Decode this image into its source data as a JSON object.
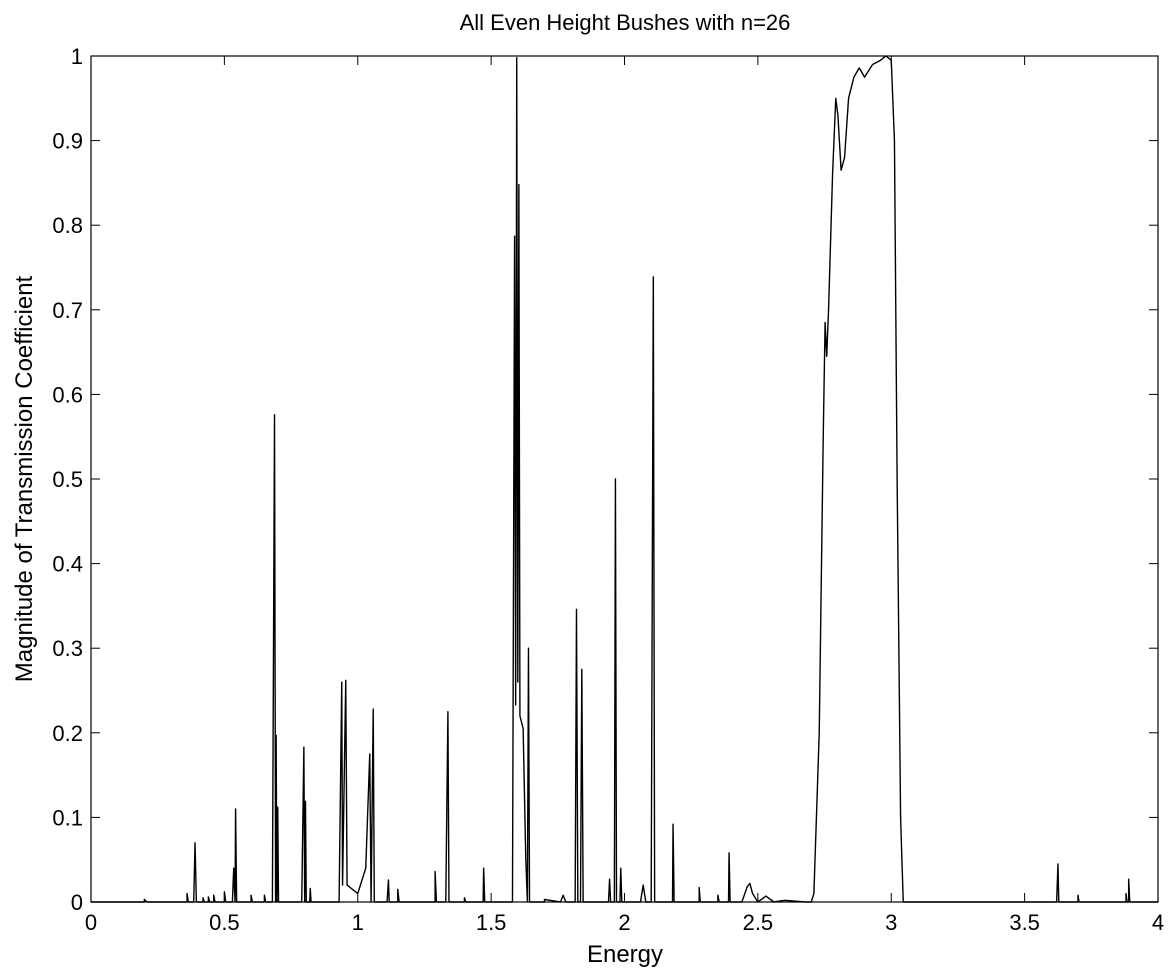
{
  "chart_data": {
    "type": "line",
    "title": "All Even Height Bushes with n=26",
    "xlabel": "Energy",
    "ylabel": "Magnitude of Transmission Coefficient",
    "xlim": [
      0,
      4
    ],
    "ylim": [
      0,
      1
    ],
    "grid": false,
    "x_ticks": [
      0,
      0.5,
      1,
      1.5,
      2,
      2.5,
      3,
      3.5,
      4
    ],
    "x_tick_labels": [
      "0",
      "0.5",
      "1",
      "1.5",
      "2",
      "2.5",
      "3",
      "3.5",
      "4"
    ],
    "y_ticks": [
      0,
      0.1,
      0.2,
      0.3,
      0.4,
      0.5,
      0.6,
      0.7,
      0.8,
      0.9,
      1
    ],
    "y_tick_labels": [
      "0",
      "0.1",
      "0.2",
      "0.3",
      "0.4",
      "0.5",
      "0.6",
      "0.7",
      "0.8",
      "0.9",
      "1"
    ],
    "series": [
      {
        "color": "#000000",
        "points": [
          [
            0.0,
            0.0
          ],
          [
            0.2,
            0.0
          ],
          [
            0.2,
            0.003
          ],
          [
            0.21,
            0.0
          ],
          [
            0.36,
            0.0
          ],
          [
            0.36,
            0.01
          ],
          [
            0.365,
            0.0
          ],
          [
            0.385,
            0.0
          ],
          [
            0.39,
            0.07
          ],
          [
            0.395,
            0.0
          ],
          [
            0.42,
            0.0
          ],
          [
            0.42,
            0.005
          ],
          [
            0.425,
            0.0
          ],
          [
            0.44,
            0.0
          ],
          [
            0.44,
            0.006
          ],
          [
            0.445,
            0.0
          ],
          [
            0.46,
            0.0
          ],
          [
            0.46,
            0.008
          ],
          [
            0.465,
            0.0
          ],
          [
            0.5,
            0.0
          ],
          [
            0.5,
            0.012
          ],
          [
            0.505,
            0.0
          ],
          [
            0.53,
            0.0
          ],
          [
            0.535,
            0.04
          ],
          [
            0.54,
            0.0
          ],
          [
            0.542,
            0.11
          ],
          [
            0.546,
            0.0
          ],
          [
            0.6,
            0.0
          ],
          [
            0.6,
            0.008
          ],
          [
            0.605,
            0.0
          ],
          [
            0.65,
            0.0
          ],
          [
            0.65,
            0.008
          ],
          [
            0.655,
            0.0
          ],
          [
            0.68,
            0.0
          ],
          [
            0.688,
            0.576
          ],
          [
            0.692,
            0.0
          ],
          [
            0.694,
            0.197
          ],
          [
            0.697,
            0.0
          ],
          [
            0.7,
            0.112
          ],
          [
            0.703,
            0.0
          ],
          [
            0.79,
            0.0
          ],
          [
            0.798,
            0.183
          ],
          [
            0.801,
            0.0
          ],
          [
            0.804,
            0.119
          ],
          [
            0.807,
            0.0
          ],
          [
            0.82,
            0.0
          ],
          [
            0.822,
            0.016
          ],
          [
            0.825,
            0.0
          ],
          [
            0.93,
            0.0
          ],
          [
            0.94,
            0.26
          ],
          [
            0.943,
            0.02
          ],
          [
            0.955,
            0.262
          ],
          [
            0.96,
            0.02
          ],
          [
            1.0,
            0.01
          ],
          [
            1.03,
            0.04
          ],
          [
            1.045,
            0.175
          ],
          [
            1.05,
            0.0
          ],
          [
            1.058,
            0.228
          ],
          [
            1.062,
            0.0
          ],
          [
            1.11,
            0.0
          ],
          [
            1.115,
            0.026
          ],
          [
            1.118,
            0.0
          ],
          [
            1.15,
            0.0
          ],
          [
            1.15,
            0.015
          ],
          [
            1.155,
            0.0
          ],
          [
            1.29,
            0.0
          ],
          [
            1.29,
            0.036
          ],
          [
            1.295,
            0.0
          ],
          [
            1.33,
            0.0
          ],
          [
            1.338,
            0.225
          ],
          [
            1.342,
            0.0
          ],
          [
            1.4,
            0.0
          ],
          [
            1.4,
            0.005
          ],
          [
            1.405,
            0.0
          ],
          [
            1.47,
            0.0
          ],
          [
            1.472,
            0.04
          ],
          [
            1.476,
            0.0
          ],
          [
            1.58,
            0.0
          ],
          [
            1.588,
            0.787
          ],
          [
            1.592,
            0.233
          ],
          [
            1.596,
            0.998
          ],
          [
            1.6,
            0.26
          ],
          [
            1.604,
            0.848
          ],
          [
            1.608,
            0.22
          ],
          [
            1.62,
            0.205
          ],
          [
            1.63,
            0.05
          ],
          [
            1.636,
            0.0
          ],
          [
            1.64,
            0.3
          ],
          [
            1.644,
            0.0
          ],
          [
            1.7,
            0.0
          ],
          [
            1.7,
            0.003
          ],
          [
            1.76,
            0.0
          ],
          [
            1.77,
            0.008
          ],
          [
            1.78,
            0.0
          ],
          [
            1.815,
            0.0
          ],
          [
            1.82,
            0.346
          ],
          [
            1.825,
            0.0
          ],
          [
            1.835,
            0.0
          ],
          [
            1.84,
            0.275
          ],
          [
            1.845,
            0.0
          ],
          [
            1.94,
            0.0
          ],
          [
            1.944,
            0.027
          ],
          [
            1.948,
            0.0
          ],
          [
            1.962,
            0.0
          ],
          [
            1.966,
            0.5
          ],
          [
            1.97,
            0.0
          ],
          [
            1.983,
            0.0
          ],
          [
            1.986,
            0.04
          ],
          [
            1.99,
            0.0
          ],
          [
            2.06,
            0.0
          ],
          [
            2.07,
            0.02
          ],
          [
            2.08,
            0.0
          ],
          [
            2.1,
            0.0
          ],
          [
            2.108,
            0.739
          ],
          [
            2.113,
            0.0
          ],
          [
            2.18,
            0.0
          ],
          [
            2.182,
            0.092
          ],
          [
            2.186,
            0.0
          ],
          [
            2.28,
            0.0
          ],
          [
            2.28,
            0.017
          ],
          [
            2.284,
            0.0
          ],
          [
            2.35,
            0.0
          ],
          [
            2.35,
            0.008
          ],
          [
            2.355,
            0.0
          ],
          [
            2.39,
            0.0
          ],
          [
            2.392,
            0.058
          ],
          [
            2.396,
            0.0
          ],
          [
            2.44,
            0.0
          ],
          [
            2.46,
            0.018
          ],
          [
            2.47,
            0.022
          ],
          [
            2.48,
            0.01
          ],
          [
            2.5,
            0.0
          ],
          [
            2.53,
            0.007
          ],
          [
            2.56,
            0.0
          ],
          [
            2.6,
            0.002
          ],
          [
            2.68,
            0.0
          ],
          [
            2.7,
            0.0
          ],
          [
            2.71,
            0.01
          ],
          [
            2.73,
            0.2
          ],
          [
            2.745,
            0.55
          ],
          [
            2.752,
            0.685
          ],
          [
            2.758,
            0.645
          ],
          [
            2.765,
            0.7
          ],
          [
            2.78,
            0.86
          ],
          [
            2.792,
            0.95
          ],
          [
            2.8,
            0.93
          ],
          [
            2.812,
            0.865
          ],
          [
            2.825,
            0.88
          ],
          [
            2.84,
            0.95
          ],
          [
            2.86,
            0.975
          ],
          [
            2.88,
            0.986
          ],
          [
            2.9,
            0.975
          ],
          [
            2.93,
            0.99
          ],
          [
            2.96,
            0.995
          ],
          [
            2.98,
            1.0
          ],
          [
            3.0,
            0.995
          ],
          [
            3.012,
            0.9
          ],
          [
            3.022,
            0.5
          ],
          [
            3.035,
            0.1
          ],
          [
            3.045,
            0.0
          ],
          [
            3.62,
            0.0
          ],
          [
            3.625,
            0.045
          ],
          [
            3.628,
            0.0
          ],
          [
            3.7,
            0.0
          ],
          [
            3.7,
            0.008
          ],
          [
            3.704,
            0.0
          ],
          [
            3.88,
            0.0
          ],
          [
            3.88,
            0.01
          ],
          [
            3.884,
            0.0
          ],
          [
            3.89,
            0.0
          ],
          [
            3.89,
            0.027
          ],
          [
            3.894,
            0.0
          ],
          [
            4.0,
            0.0
          ]
        ]
      }
    ]
  }
}
